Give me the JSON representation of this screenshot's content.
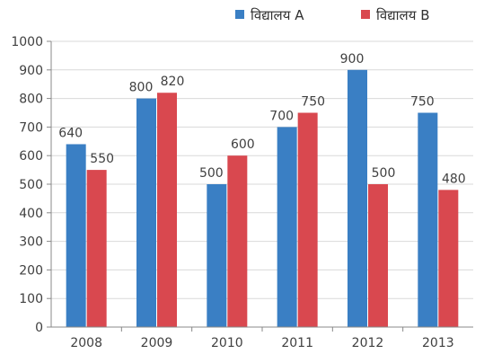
{
  "chart_data": {
    "type": "bar",
    "categories": [
      "2008",
      "2009",
      "2010",
      "2011",
      "2012",
      "2013"
    ],
    "series": [
      {
        "name": "विद्यालय A",
        "color": "#3a7fc4",
        "values": [
          640,
          800,
          500,
          700,
          900,
          750
        ]
      },
      {
        "name": "विद्यालय B",
        "color": "#d9484f",
        "values": [
          550,
          820,
          600,
          750,
          500,
          480
        ]
      }
    ],
    "ylim": [
      0,
      1000
    ],
    "yticks": [
      0,
      100,
      200,
      300,
      400,
      500,
      600,
      700,
      800,
      900,
      1000
    ],
    "grid": true,
    "legend_position": "top-right"
  }
}
